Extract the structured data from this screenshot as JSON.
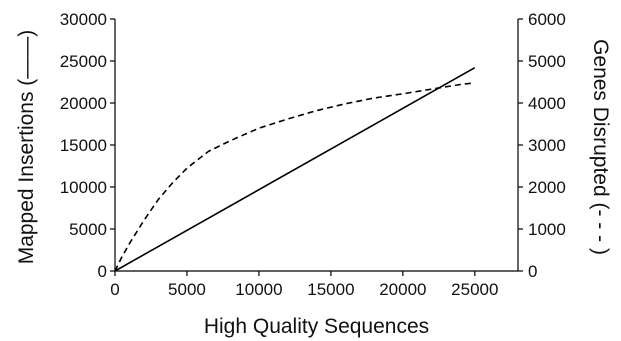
{
  "chart_data": {
    "type": "line",
    "xlabel": "High Quality Sequences",
    "ylabel_left": "Mapped Insertions (——)",
    "ylabel_right": "Genes Disrupted (- - - )",
    "xlim": [
      0,
      28000
    ],
    "ylim_left": [
      0,
      30000
    ],
    "ylim_right": [
      0,
      6000
    ],
    "x_ticks": [
      0,
      5000,
      10000,
      15000,
      20000,
      25000
    ],
    "x_tick_labels": [
      "0",
      "5000",
      "10000",
      "15000",
      "20000",
      "25000"
    ],
    "y_left_ticks": [
      0,
      5000,
      10000,
      15000,
      20000,
      25000,
      30000
    ],
    "y_left_tick_labels": [
      "0",
      "5000",
      "10000",
      "15000",
      "20000",
      "25000",
      "30000"
    ],
    "y_right_ticks": [
      0,
      1000,
      2000,
      3000,
      4000,
      5000,
      6000
    ],
    "y_right_tick_labels": [
      "0",
      "1000",
      "2000",
      "3000",
      "4000",
      "5000",
      "6000"
    ],
    "grid": false,
    "series": [
      {
        "axis": "left",
        "style": "solid",
        "x": [
          0,
          25000
        ],
        "y": [
          0,
          24200
        ]
      },
      {
        "axis": "right",
        "style": "dashed",
        "x": [
          0,
          500,
          1000,
          2000,
          3000,
          4000,
          5000,
          6500,
          8000,
          10000,
          12000,
          14000,
          16000,
          18000,
          20000,
          22000,
          24000,
          25000
        ],
        "y": [
          0,
          350,
          650,
          1200,
          1700,
          2100,
          2450,
          2850,
          3100,
          3400,
          3620,
          3820,
          3980,
          4120,
          4220,
          4330,
          4440,
          4480
        ]
      }
    ]
  }
}
